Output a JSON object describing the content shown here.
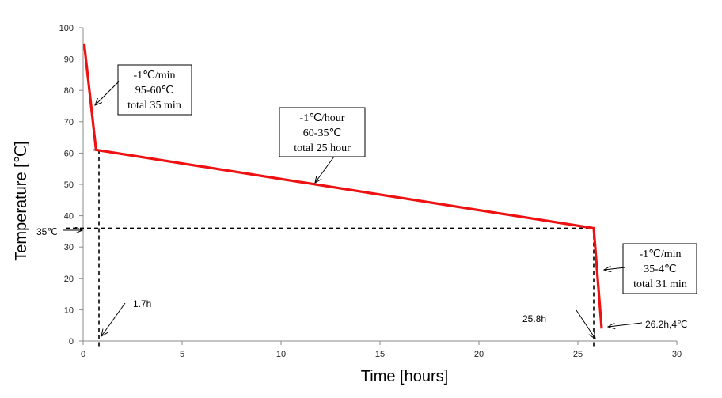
{
  "chart_data": {
    "type": "line",
    "xlabel": "Time [hours]",
    "ylabel": "Temperature  [℃]",
    "xlim": [
      0,
      30
    ],
    "ylim": [
      0,
      100
    ],
    "xticks": [
      0,
      5,
      10,
      15,
      20,
      25,
      30
    ],
    "yticks": [
      0,
      10,
      20,
      30,
      40,
      50,
      60,
      70,
      80,
      90,
      100
    ],
    "grid": false,
    "series": [
      {
        "color": "#ee1111",
        "x": [
          0.05,
          0.65,
          25.8,
          26.2
        ],
        "y": [
          95,
          61,
          36,
          4
        ]
      }
    ],
    "annotations": [
      {
        "id": "stage1",
        "lines": [
          "-1℃/min",
          "95-60℃",
          "total 35 min"
        ]
      },
      {
        "id": "stage2",
        "lines": [
          "-1℃/hour",
          "60-35℃",
          "total 25 hour"
        ]
      },
      {
        "id": "stage3",
        "lines": [
          "-1℃/min",
          "35-4℃",
          "total 31 min"
        ]
      }
    ],
    "point_labels": {
      "t1": "1.7h",
      "t2": "25.8h",
      "end": "26.2h,4℃",
      "y35": "35℃"
    },
    "reference_lines": {
      "x": [
        0.8,
        25.8
      ],
      "y": [
        36,
        61
      ]
    }
  }
}
